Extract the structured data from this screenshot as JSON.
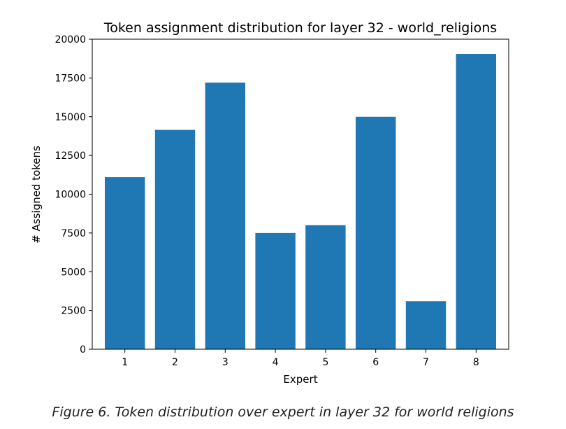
{
  "chart_data": {
    "type": "bar",
    "title": "Token assignment distribution for layer 32 - world_religions",
    "xlabel": "Expert",
    "ylabel": "# Assigned tokens",
    "categories": [
      "1",
      "2",
      "3",
      "4",
      "5",
      "6",
      "7",
      "8"
    ],
    "values": [
      11100,
      14150,
      17200,
      7500,
      8000,
      15000,
      3100,
      19050
    ],
    "ylim": [
      0,
      20000
    ],
    "yticks": [
      "0",
      "2500",
      "5000",
      "7500",
      "10000",
      "12500",
      "15000",
      "17500",
      "20000"
    ],
    "bar_color": "#1f77b4",
    "grid": false
  },
  "caption": "Figure 6. Token distribution over expert in layer 32 for world religions"
}
